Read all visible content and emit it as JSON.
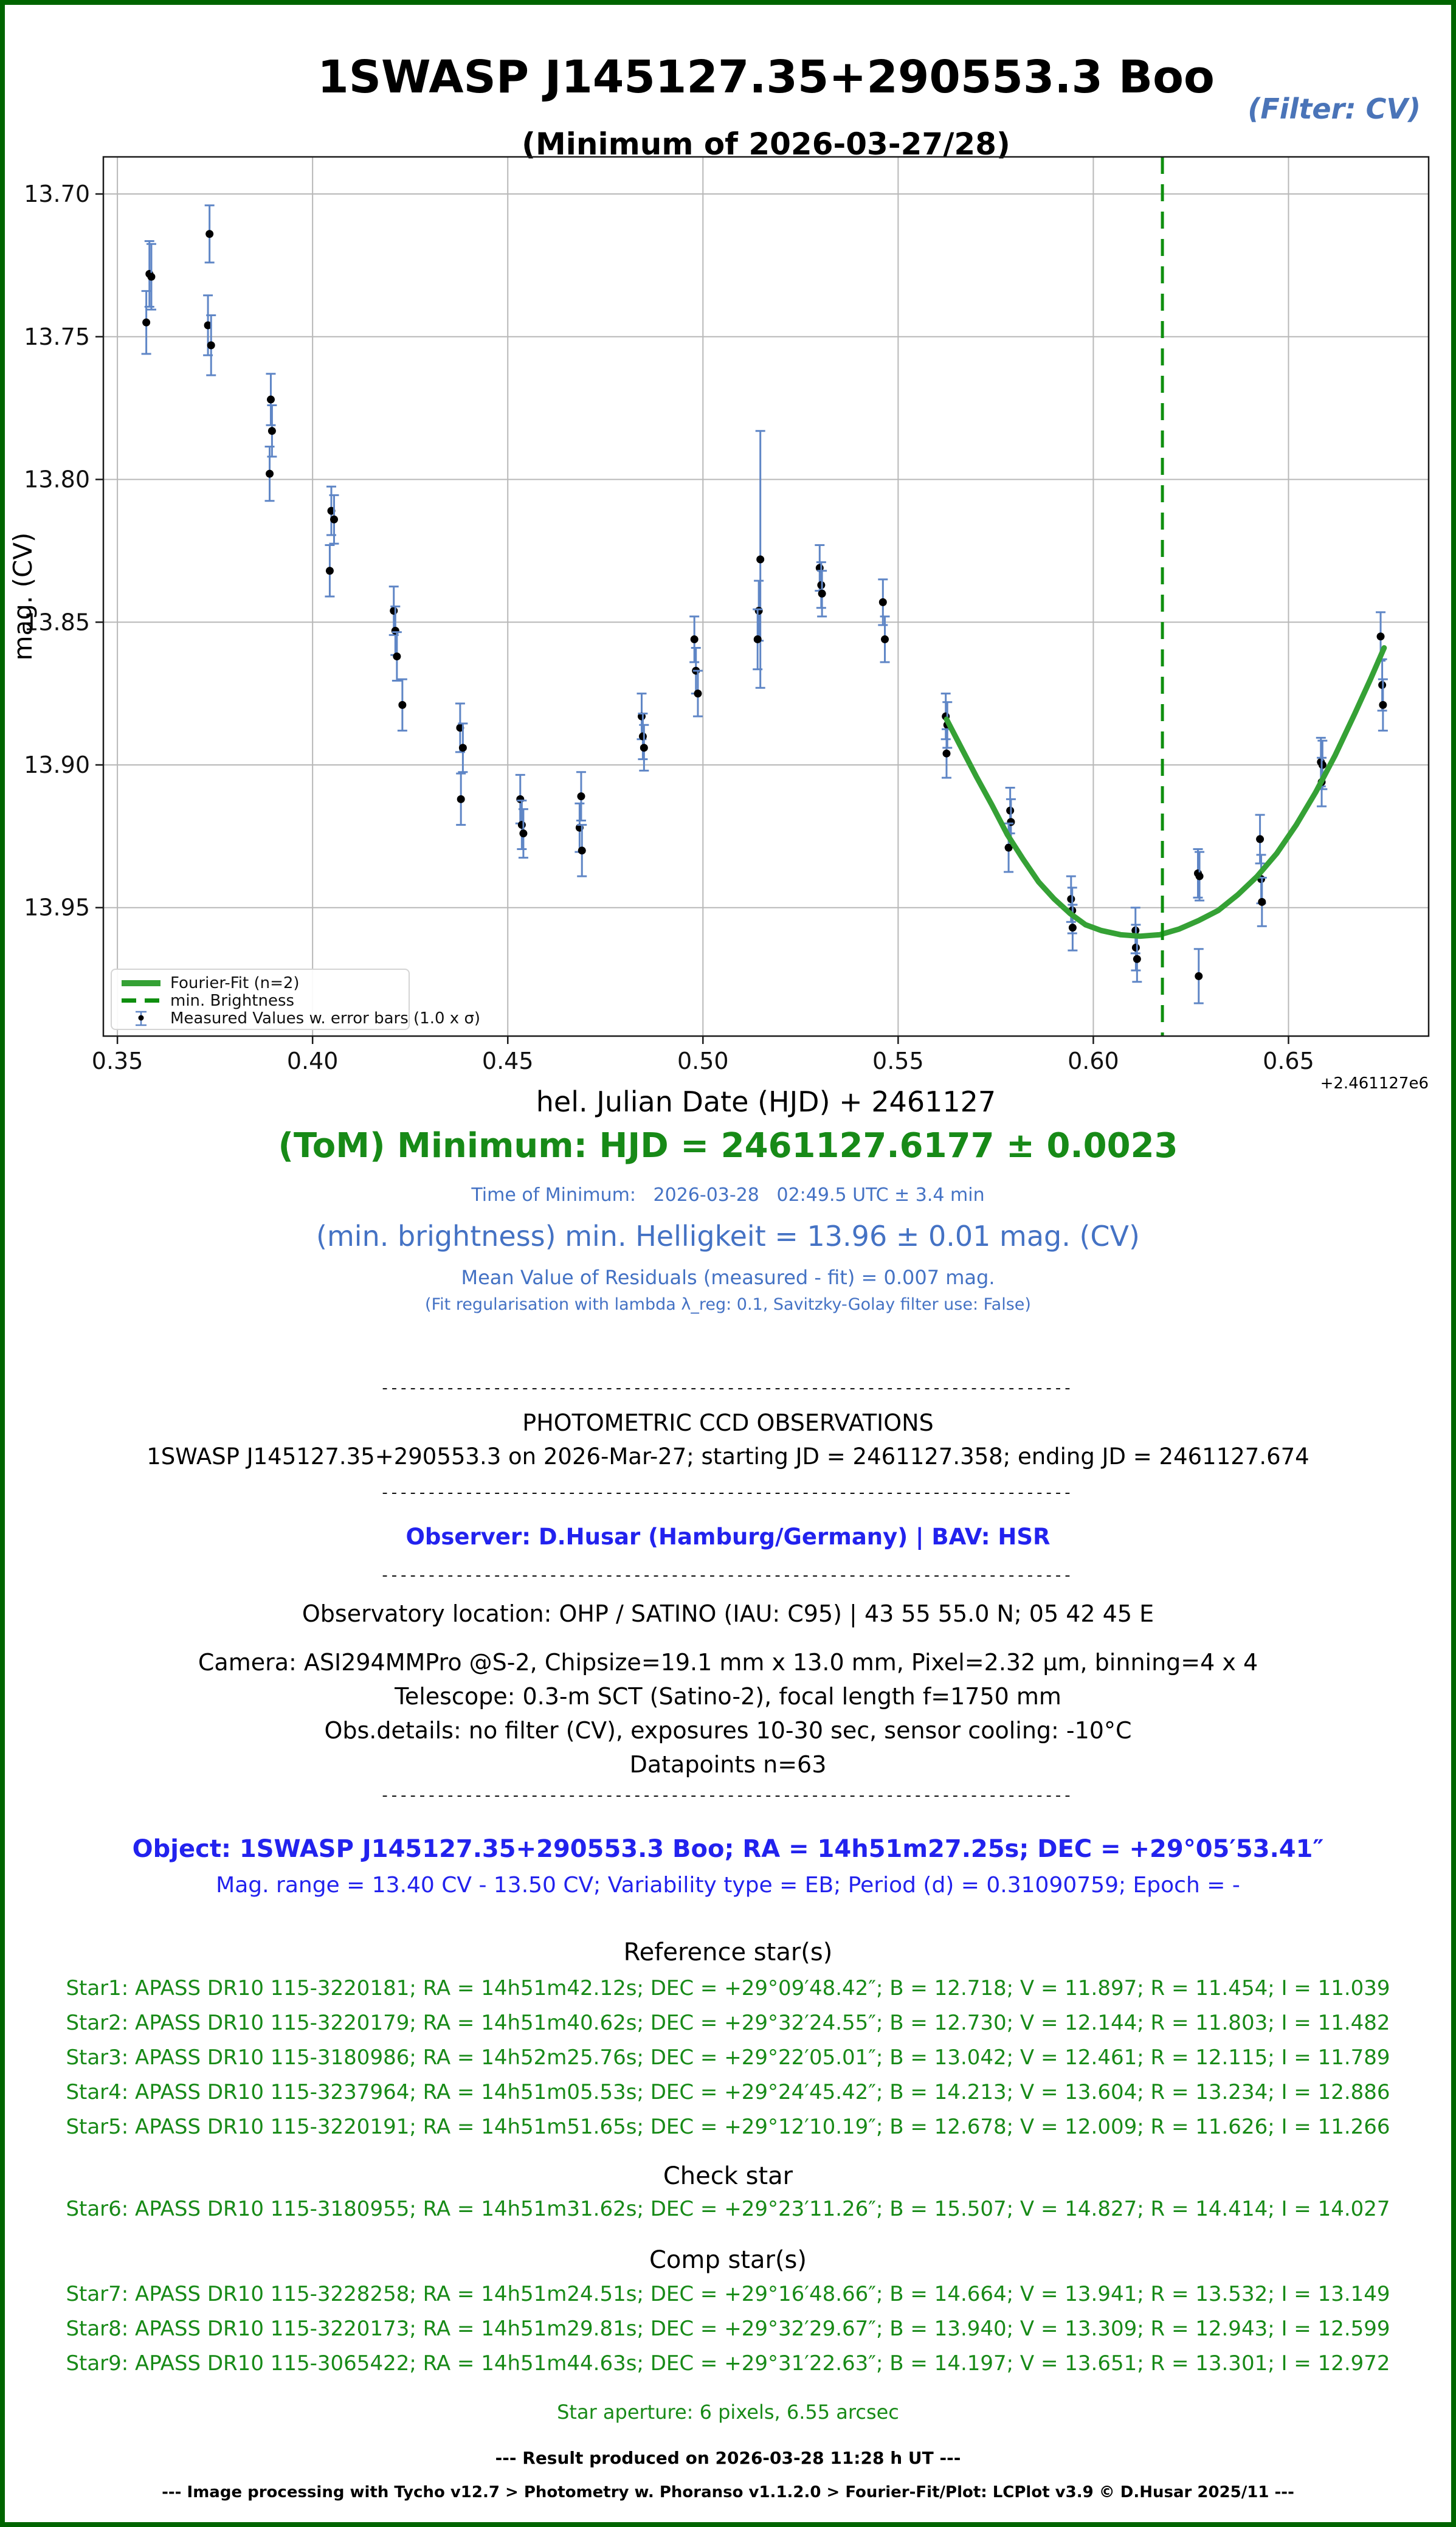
{
  "window": {
    "frame_color": "#006400",
    "background": "#ffffff"
  },
  "header": {
    "title": "1SWASP J145127.35+290553.3 Boo",
    "subtitle": "(Minimum of 2026-03-27/28)",
    "filter_label": "(Filter: CV)",
    "filter_color": "#4a74b8"
  },
  "chart_data": {
    "type": "scatter",
    "title": "1SWASP J145127.35+290553.3 Boo",
    "xlabel": "hel. Julian Date (HJD) + 2461127",
    "ylabel": "mag. (CV)",
    "x_offset_label": "+2.461127e6",
    "y_axis_inverted": true,
    "xlim": [
      0.3464,
      0.6859
    ],
    "ylim": [
      13.687,
      13.995
    ],
    "xticks": [
      "0.35",
      "0.40",
      "0.45",
      "0.50",
      "0.55",
      "0.60",
      "0.65"
    ],
    "yticks": [
      "13.70",
      "13.75",
      "13.80",
      "13.85",
      "13.90",
      "13.95"
    ],
    "grid": true,
    "grid_color": "#b8b8b8",
    "legend": {
      "position": "lower left",
      "entries": [
        {
          "label": "Fourier-Fit (n=2)",
          "type": "line",
          "color": "#35a135"
        },
        {
          "label": "min. Brightness",
          "type": "dashed-line",
          "color": "#0f8f0f"
        },
        {
          "label": "Measured Values w. error bars (1.0 x σ)",
          "type": "errorbar",
          "marker_color": "#000000",
          "bar_color": "#5f86c6"
        }
      ]
    },
    "series": [
      {
        "name": "Measured Values w. error bars (1.0 x σ)",
        "type": "errorbar",
        "marker_color": "#000000",
        "bar_color": "#5f86c6",
        "n_points": 63,
        "points": [
          [
            0.3582,
            13.728,
            0.0115
          ],
          [
            0.3587,
            13.729,
            0.0115
          ],
          [
            0.3574,
            13.745,
            0.011
          ],
          [
            0.3736,
            13.714,
            0.01
          ],
          [
            0.3732,
            13.746,
            0.0105
          ],
          [
            0.374,
            13.753,
            0.0105
          ],
          [
            0.3893,
            13.772,
            0.009
          ],
          [
            0.3896,
            13.783,
            0.009
          ],
          [
            0.389,
            13.798,
            0.0095
          ],
          [
            0.4048,
            13.811,
            0.0085
          ],
          [
            0.4055,
            13.814,
            0.0085
          ],
          [
            0.4044,
            13.832,
            0.009
          ],
          [
            0.4208,
            13.846,
            0.0085
          ],
          [
            0.4212,
            13.853,
            0.0085
          ],
          [
            0.4216,
            13.862,
            0.0085
          ],
          [
            0.423,
            13.879,
            0.009
          ],
          [
            0.4378,
            13.887,
            0.0085
          ],
          [
            0.4385,
            13.894,
            0.0085
          ],
          [
            0.438,
            13.912,
            0.009
          ],
          [
            0.4532,
            13.912,
            0.0085
          ],
          [
            0.4536,
            13.921,
            0.0085
          ],
          [
            0.454,
            13.924,
            0.0085
          ],
          [
            0.4688,
            13.911,
            0.0085
          ],
          [
            0.4684,
            13.922,
            0.0085
          ],
          [
            0.469,
            13.93,
            0.009
          ],
          [
            0.4843,
            13.883,
            0.008
          ],
          [
            0.4846,
            13.89,
            0.008
          ],
          [
            0.4849,
            13.894,
            0.008
          ],
          [
            0.4978,
            13.856,
            0.008
          ],
          [
            0.4982,
            13.867,
            0.008
          ],
          [
            0.4987,
            13.875,
            0.008
          ],
          [
            0.5147,
            13.828,
            0.045
          ],
          [
            0.5143,
            13.846,
            0.0105
          ],
          [
            0.514,
            13.856,
            0.0105
          ],
          [
            0.5299,
            13.831,
            0.008
          ],
          [
            0.5303,
            13.837,
            0.008
          ],
          [
            0.5305,
            13.84,
            0.008
          ],
          [
            0.5461,
            13.843,
            0.008
          ],
          [
            0.5466,
            13.856,
            0.008
          ],
          [
            0.5622,
            13.883,
            0.008
          ],
          [
            0.5626,
            13.886,
            0.008
          ],
          [
            0.5624,
            13.896,
            0.0085
          ],
          [
            0.5787,
            13.916,
            0.008
          ],
          [
            0.5789,
            13.92,
            0.008
          ],
          [
            0.5783,
            13.929,
            0.0085
          ],
          [
            0.5943,
            13.947,
            0.008
          ],
          [
            0.5946,
            13.951,
            0.008
          ],
          [
            0.5947,
            13.957,
            0.008
          ],
          [
            0.6108,
            13.958,
            0.008
          ],
          [
            0.6109,
            13.964,
            0.008
          ],
          [
            0.6112,
            13.968,
            0.008
          ],
          [
            0.6268,
            13.938,
            0.0085
          ],
          [
            0.6272,
            13.939,
            0.0085
          ],
          [
            0.627,
            13.974,
            0.0095
          ],
          [
            0.6427,
            13.926,
            0.0085
          ],
          [
            0.643,
            13.94,
            0.0085
          ],
          [
            0.6432,
            13.948,
            0.0085
          ],
          [
            0.6583,
            13.899,
            0.0085
          ],
          [
            0.6587,
            13.9,
            0.0085
          ],
          [
            0.6585,
            13.906,
            0.0085
          ],
          [
            0.6736,
            13.855,
            0.0085
          ],
          [
            0.674,
            13.872,
            0.009
          ],
          [
            0.6742,
            13.879,
            0.009
          ]
        ]
      },
      {
        "name": "Fourier-Fit (n=2)",
        "type": "line",
        "color": "#35a135",
        "points": [
          [
            0.5624,
            13.884
          ],
          [
            0.566,
            13.8935
          ],
          [
            0.57,
            13.904
          ],
          [
            0.574,
            13.914
          ],
          [
            0.578,
            13.9245
          ],
          [
            0.582,
            13.933
          ],
          [
            0.586,
            13.941
          ],
          [
            0.59,
            13.947
          ],
          [
            0.594,
            13.952
          ],
          [
            0.598,
            13.956
          ],
          [
            0.602,
            13.958
          ],
          [
            0.607,
            13.9595
          ],
          [
            0.612,
            13.96
          ],
          [
            0.617,
            13.9595
          ],
          [
            0.622,
            13.9575
          ],
          [
            0.627,
            13.9545
          ],
          [
            0.632,
            13.951
          ],
          [
            0.637,
            13.9455
          ],
          [
            0.642,
            13.939
          ],
          [
            0.647,
            13.931
          ],
          [
            0.652,
            13.921
          ],
          [
            0.657,
            13.9095
          ],
          [
            0.662,
            13.8965
          ],
          [
            0.667,
            13.882
          ],
          [
            0.671,
            13.87
          ],
          [
            0.6745,
            13.859
          ]
        ]
      },
      {
        "name": "min. Brightness",
        "type": "vline",
        "x": 0.6177,
        "color": "#0f8f0f"
      }
    ]
  },
  "results": {
    "tom_line": "(ToM) Minimum: HJD = 2461127.6177 ± 0.0023",
    "tom_sub_line": "Time of Minimum:   2026-03-28   02:49.5 UTC ± 3.4 min",
    "min_brightness_line": "(min. brightness) min. Helligkeit = 13.96 ± 0.01 mag. (CV)",
    "residuals_line": "Mean Value of Residuals (measured - fit) = 0.007 mag.",
    "regularisation_line": "(Fit regularisation with lambda λ_reg: 0.1, Savitzky-Golay filter use: False)"
  },
  "report": {
    "separator": "--------------------------------------------------------------------------",
    "section1_title": "PHOTOMETRIC CCD OBSERVATIONS",
    "section1_line": "1SWASP J145127.35+290553.3 on 2026-Mar-27; starting JD = 2461127.358; ending JD = 2461127.674",
    "observer_line": "Observer: D.Husar (Hamburg/Germany) | BAV: HSR",
    "observatory_line": "Observatory location: OHP / SATINO (IAU: C95) | 43 55 55.0 N; 05 42 45 E",
    "camera_line": "Camera: ASI294MMPro @S-2, Chipsize=19.1 mm x 13.0 mm, Pixel=2.32 μm, binning=4 x 4",
    "telescope_line": "Telescope: 0.3-m SCT (Satino-2), focal length f=1750 mm",
    "obs_details_line": "Obs.details: no filter (CV), exposures 10-30 sec, sensor cooling: -10°C",
    "datapoints_line": "Datapoints n=63",
    "object_line": "Object: 1SWASP J145127.35+290553.3 Boo; RA = 14h51m27.25s; DEC = +29°05′53.41″",
    "mag_range_line": "Mag. range = 13.40 CV - 13.50 CV; Variability type = EB; Period (d) = 0.31090759; Epoch = -"
  },
  "stars": {
    "reference_heading": "Reference star(s)",
    "reference": [
      "Star1: APASS DR10 115-3220181; RA = 14h51m42.12s; DEC = +29°09′48.42″; B = 12.718; V = 11.897; R = 11.454; I = 11.039",
      "Star2: APASS DR10 115-3220179; RA = 14h51m40.62s; DEC = +29°32′24.55″; B = 12.730; V = 12.144; R = 11.803; I = 11.482",
      "Star3: APASS DR10 115-3180986; RA = 14h52m25.76s; DEC = +29°22′05.01″; B = 13.042; V = 12.461; R = 12.115; I = 11.789",
      "Star4: APASS DR10 115-3237964; RA = 14h51m05.53s; DEC = +29°24′45.42″; B = 14.213; V = 13.604; R = 13.234; I = 12.886",
      "Star5: APASS DR10 115-3220191; RA = 14h51m51.65s; DEC = +29°12′10.19″; B = 12.678; V = 12.009; R = 11.626; I = 11.266"
    ],
    "check_heading": "Check star",
    "check": [
      "Star6: APASS DR10 115-3180955; RA = 14h51m31.62s; DEC = +29°23′11.26″; B = 15.507; V = 14.827; R = 14.414; I = 14.027"
    ],
    "comp_heading": "Comp star(s)",
    "comp": [
      "Star7: APASS DR10 115-3228258; RA = 14h51m24.51s; DEC = +29°16′48.66″; B = 14.664; V = 13.941; R = 13.532; I = 13.149",
      "Star8: APASS DR10 115-3220173; RA = 14h51m29.81s; DEC = +29°32′29.67″; B = 13.940; V = 13.309; R = 12.943; I = 12.599",
      "Star9: APASS DR10 115-3065422; RA = 14h51m44.63s; DEC = +29°31′22.63″; B = 14.197; V = 13.651; R = 13.301; I = 12.972"
    ],
    "aperture_line": "Star aperture: 6 pixels, 6.55 arcsec"
  },
  "footer": {
    "result_line": "--- Result produced on 2026-03-28 11:28 h UT ---",
    "processing_line": "--- Image processing with Tycho v12.7 > Photometry w. Phoranso v1.1.2.0 > Fourier-Fit/Plot: LCPlot v3.9 © D.Husar 2025/11 ---"
  }
}
